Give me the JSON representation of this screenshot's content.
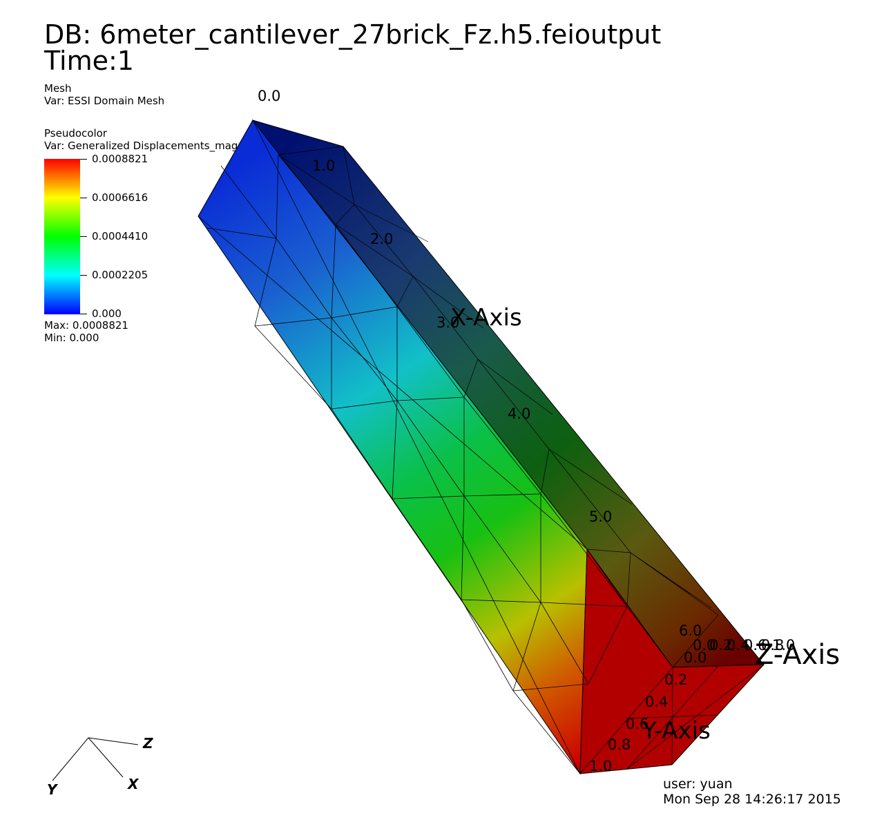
{
  "header": {
    "db": "DB: 6meter_cantilever_27brick_Fz.h5.feioutput",
    "time": "Time:1"
  },
  "plots": {
    "mesh": {
      "label": "Mesh",
      "var": "Var: ESSI Domain Mesh"
    },
    "pseudocolor": {
      "label": "Pseudocolor",
      "var": "Var: Generalized Displacements_magnitude",
      "tick_labels": [
        "0.0008821",
        "0.0006616",
        "0.0004410",
        "0.0002205",
        "0.000"
      ],
      "max": "Max:  0.0008821",
      "min": "Min:  0.000"
    }
  },
  "axes": {
    "x": {
      "title": "X-Axis",
      "ticks": [
        "0.0",
        "1.0",
        "2.0",
        "3.0",
        "4.0",
        "5.0",
        "6.0"
      ]
    },
    "y": {
      "title": "Y-Axis",
      "ticks": [
        "0.0",
        "0.2",
        "0.4",
        "0.6",
        "0.8",
        "1.0"
      ]
    },
    "z": {
      "title": "Z-Axis",
      "ticks": [
        "0.0",
        "0.2",
        "0.4",
        "0.6",
        "0.8",
        "1.0"
      ]
    }
  },
  "triad": {
    "x": "X",
    "y": "Y",
    "z": "Z"
  },
  "footer": {
    "user": "user: yuan",
    "date": "Mon Sep 28 14:26:17 2015"
  },
  "colors": {
    "low": "#0000ff",
    "quarter": "#00ffff",
    "mid": "#00ff00",
    "three_quarter": "#ffff00",
    "high": "#ff0000"
  }
}
